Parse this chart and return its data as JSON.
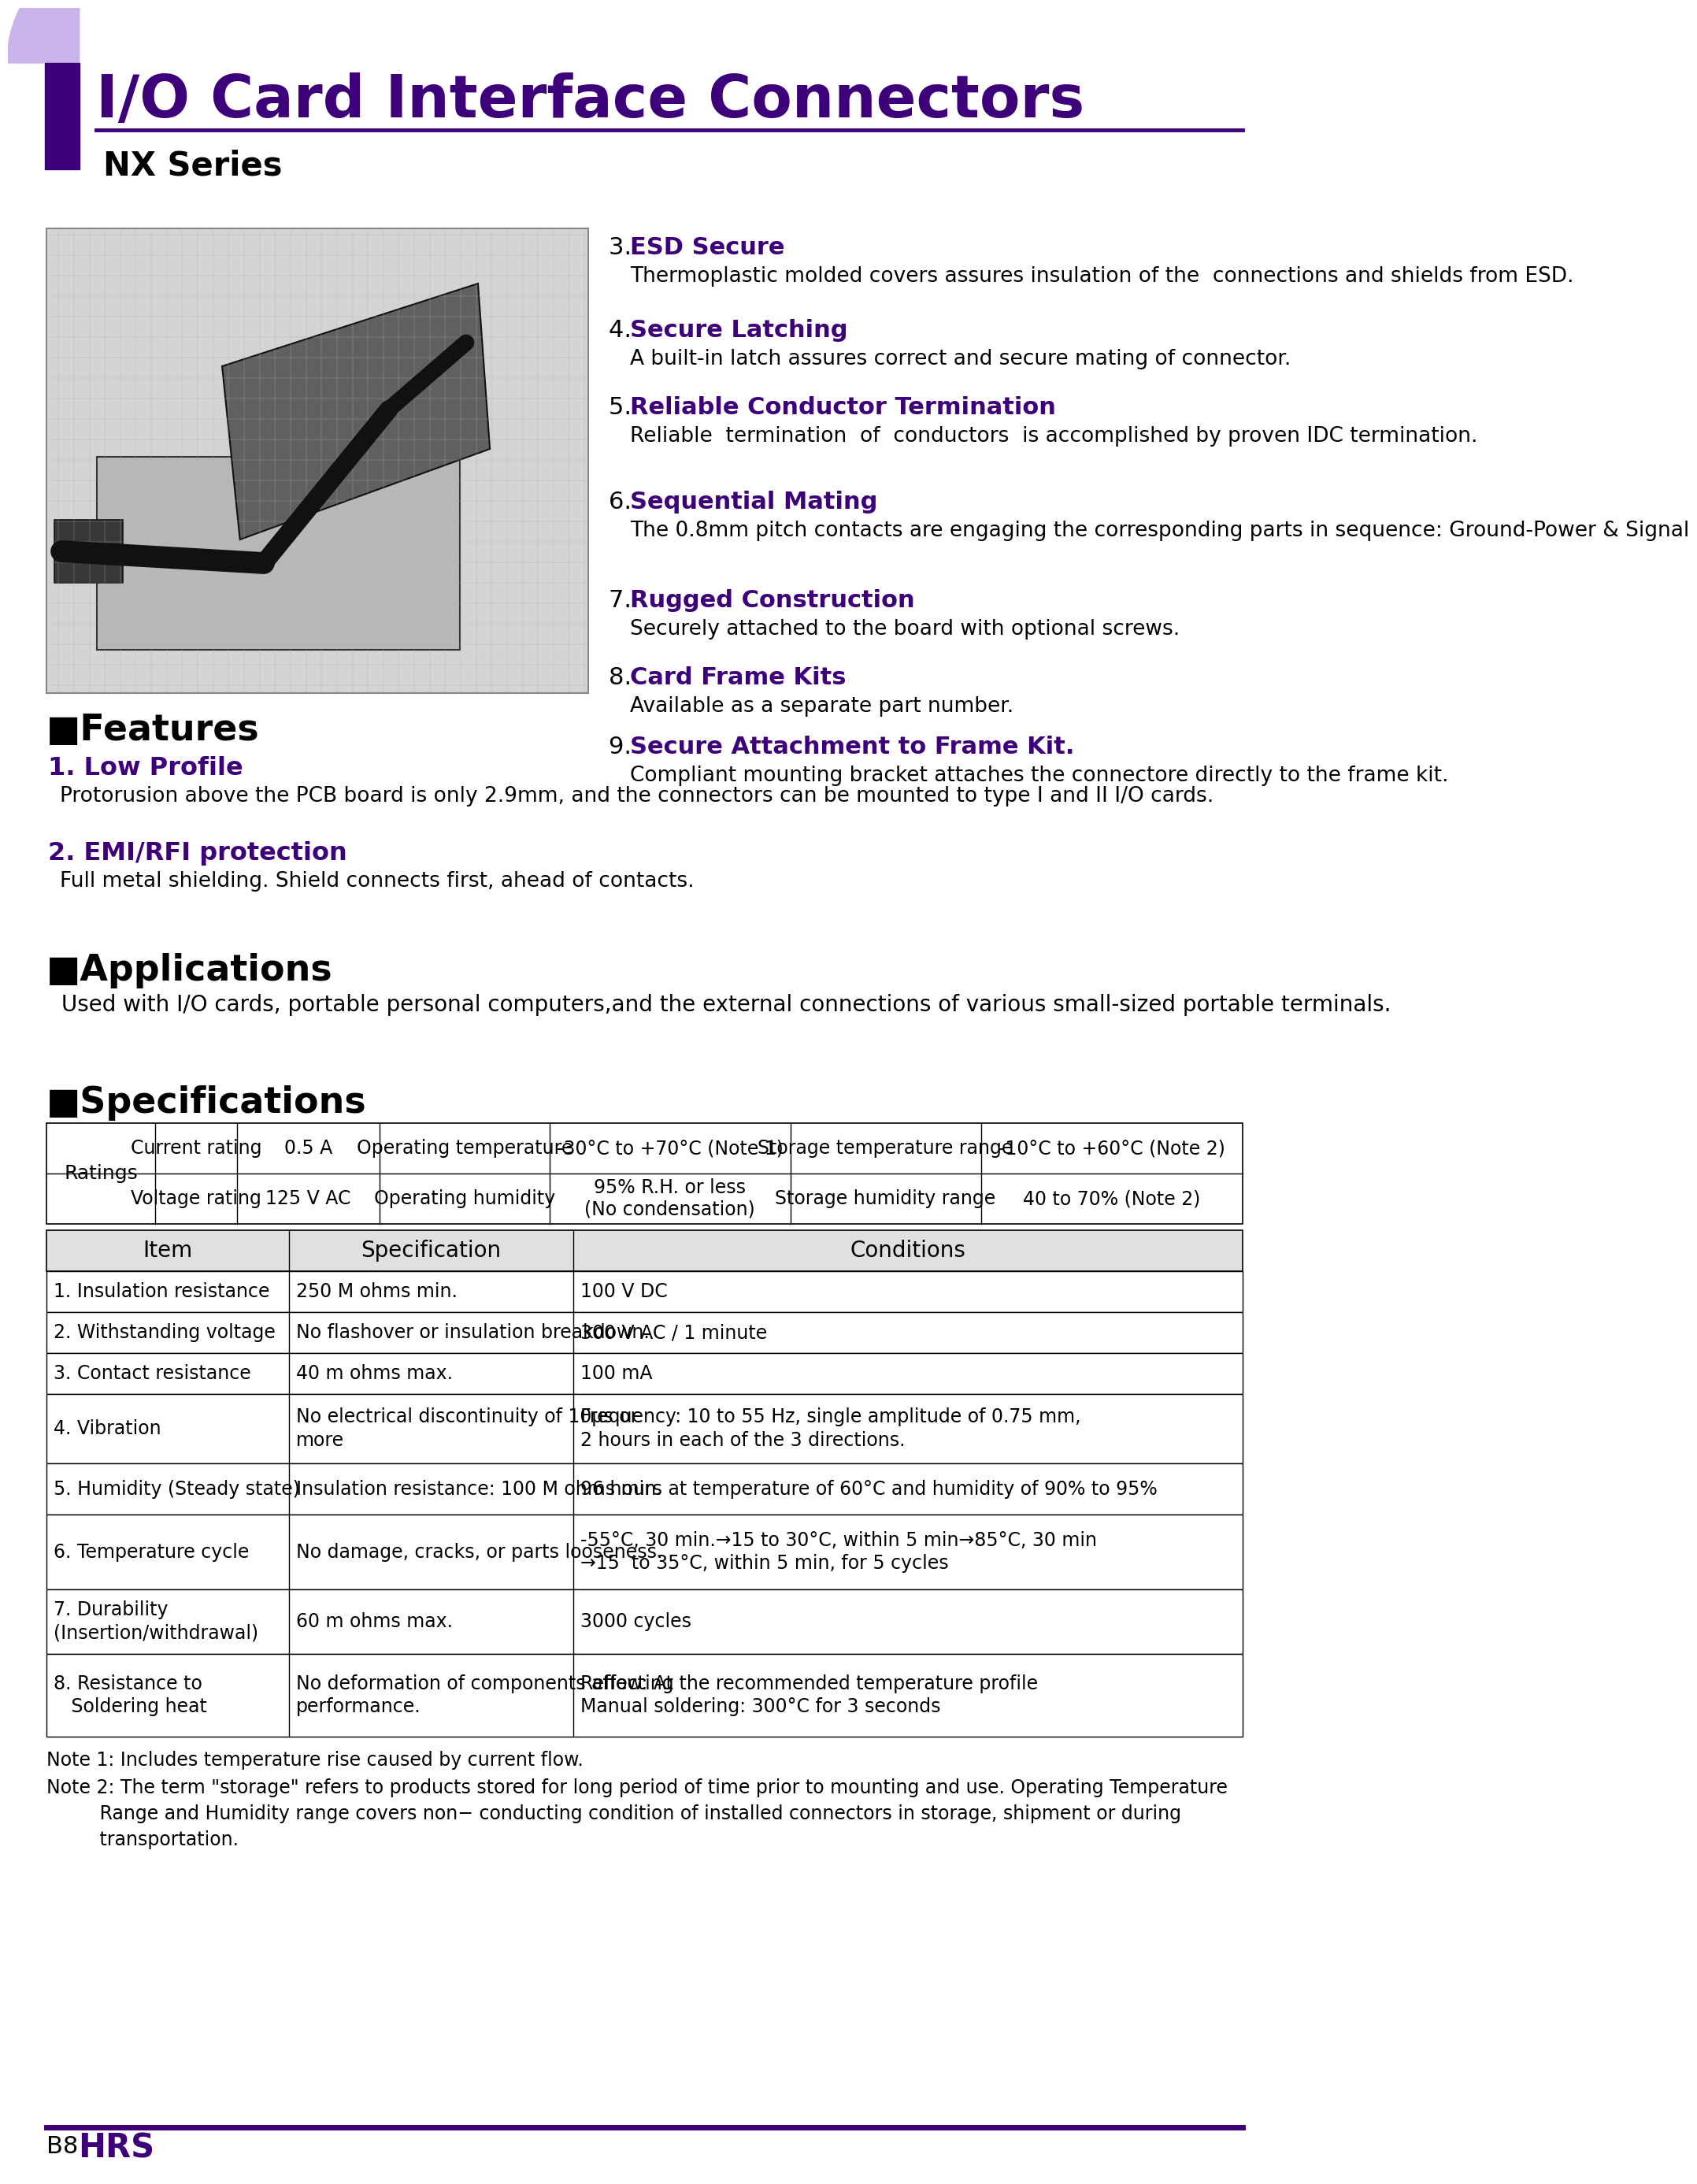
{
  "title": "I/O Card Interface Connectors",
  "subtitle": "NX Series",
  "purple_dark": "#3d007a",
  "purple_light": "#c8b4e8",
  "black": "#000000",
  "white": "#ffffff",
  "features_title": "Features",
  "features_bullet": "■",
  "features": [
    {
      "num": "1.",
      "heading": "Low Profile",
      "text": "Protorusion above the PCB board is only 2.9mm, and the connectors can be mounted to type I and II I/O cards."
    },
    {
      "num": "2.",
      "heading": "EMI/RFI protection",
      "text": "Full metal shielding. Shield connects first, ahead of contacts."
    }
  ],
  "right_features": [
    {
      "num": "3.",
      "heading": "ESD Secure",
      "text": "Thermoplastic molded covers assures insulation of the  connections and shields from ESD."
    },
    {
      "num": "4.",
      "heading": "Secure Latching",
      "text": "A built-in latch assures correct and secure mating of connector."
    },
    {
      "num": "5.",
      "heading": "Reliable Conductor Termination",
      "text": "Reliable  termination  of  conductors  is accomplished by proven IDC termination."
    },
    {
      "num": "6.",
      "heading": "Sequential Mating",
      "text": "The 0.8mm pitch contacts are engaging the corresponding parts in sequence: Ground-Power & Signal"
    },
    {
      "num": "7.",
      "heading": "Rugged Construction",
      "text": "Securely attached to the board with optional screws."
    },
    {
      "num": "8.",
      "heading": "Card Frame Kits",
      "text": "Available as a separate part number."
    },
    {
      "num": "9.",
      "heading": "Secure Attachment to Frame Kit.",
      "text": "Compliant mounting bracket attaches the connectore directly to the frame kit."
    }
  ],
  "applications_title": "Applications",
  "applications_text": "Used with I/O cards, portable personal computers,and the external connections of various small-sized portable terminals.",
  "specifications_title": "Specifications",
  "ratings_row1": [
    "Current rating",
    "0.5 A",
    "Operating temperature",
    "-30°C to +70°C (Note 1)",
    "Storage temperature range",
    "-10°C to +60°C (Note 2)"
  ],
  "ratings_row2": [
    "Voltage rating",
    "125 V AC",
    "Operating humidity",
    "95% R.H. or less\n(No condensation)",
    "Storage humidity range",
    "40 to 70% (Note 2)"
  ],
  "specs_col_headers": [
    "Item",
    "Specification",
    "Conditions"
  ],
  "specs_rows": [
    [
      "1. Insulation resistance",
      "250 M ohms min.",
      "100 V DC"
    ],
    [
      "2. Withstanding voltage",
      "No flashover or insulation breakdown.",
      "300 V AC / 1 minute"
    ],
    [
      "3. Contact resistance",
      "40 m ohms max.",
      "100 mA"
    ],
    [
      "4. Vibration",
      "No electrical discontinuity of 10μs or\nmore",
      "Frequency: 10 to 55 Hz, single amplitude of 0.75 mm,\n2 hours in each of the 3 directions."
    ],
    [
      "5. Humidity (Steady state)",
      "Insulation resistance: 100 M ohms min.",
      "96 hours at temperature of 60°C and humidity of 90% to 95%"
    ],
    [
      "6. Temperature cycle",
      "No damage, cracks, or parts looseness.",
      "-55°C, 30 min.→15 to 30°C, within 5 min→85°C, 30 min\n→15  to 35°C, within 5 min, for 5 cycles"
    ],
    [
      "7. Durability\n(Insertion/withdrawal)",
      "60 m ohms max.",
      "3000 cycles"
    ],
    [
      "8. Resistance to\n   Soldering heat",
      "No deformation of components affecting\nperformance.",
      "Reflow: At the recommended temperature profile\nManual soldering: 300°C for 3 seconds"
    ]
  ],
  "note1": "Note 1: Includes temperature rise caused by current flow.",
  "note2_line1": "Note 2: The term \"storage\" refers to products stored for long period of time prior to mounting and use. Operating Temperature",
  "note2_line2": "         Range and Humidity range covers non− conducting condition of installed connectors in storage, shipment or during",
  "note2_line3": "         transportation.",
  "page_label": "B8"
}
